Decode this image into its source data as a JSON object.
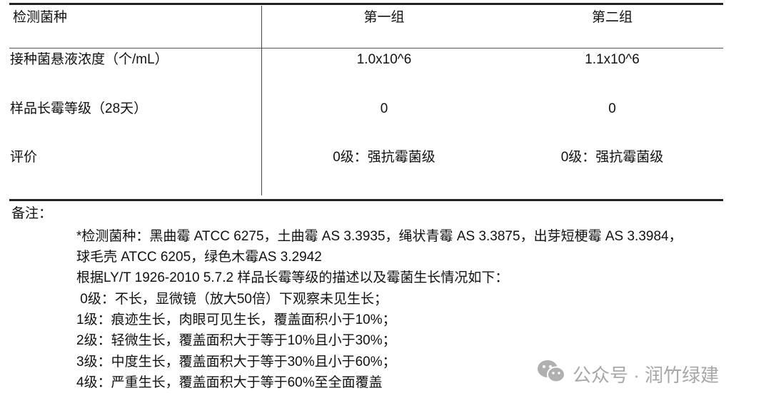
{
  "table": {
    "headers": [
      "检测菌种",
      "第一组",
      "第二组"
    ],
    "rows": [
      {
        "label": "接种菌悬液浓度（个/mL）",
        "group1": "1.0x10^6",
        "group2": "1.1x10^6"
      },
      {
        "label": "样品长霉等级（28天）",
        "group1": "0",
        "group2": "0"
      },
      {
        "label": "评价",
        "group1": "0级：强抗霉菌级",
        "group2": "0级：强抗霉菌级"
      }
    ]
  },
  "notes": {
    "title": "备注：",
    "lines": [
      "*检测菌种：黑曲霉 ATCC 6275，土曲霉 AS 3.3935，绳状青霉 AS 3.3875，出芽短梗霉 AS 3.3984，",
      "球毛壳 ATCC 6205，绿色木霉AS 3.2942",
      "根据LY/T 1926-2010 5.7.2 样品长霉等级的描述以及霉菌生长情况如下：",
      " 0级：不长，显微镜（放大50倍）下观察未见生长；",
      "1级：痕迹生长，肉眼可见生长，覆盖面积小于10%；",
      "2级：轻微生长，覆盖面积大于等于10%且小于30%；",
      "3级：中度生长，覆盖面积大于等于30%且小于60%；",
      "4级：严重生长，覆盖面积大于等于60%至全面覆盖"
    ]
  },
  "watermark": {
    "text": "公众号 · 润竹绿建",
    "icon": "wechat-icon",
    "color": "#a8a8a8"
  }
}
